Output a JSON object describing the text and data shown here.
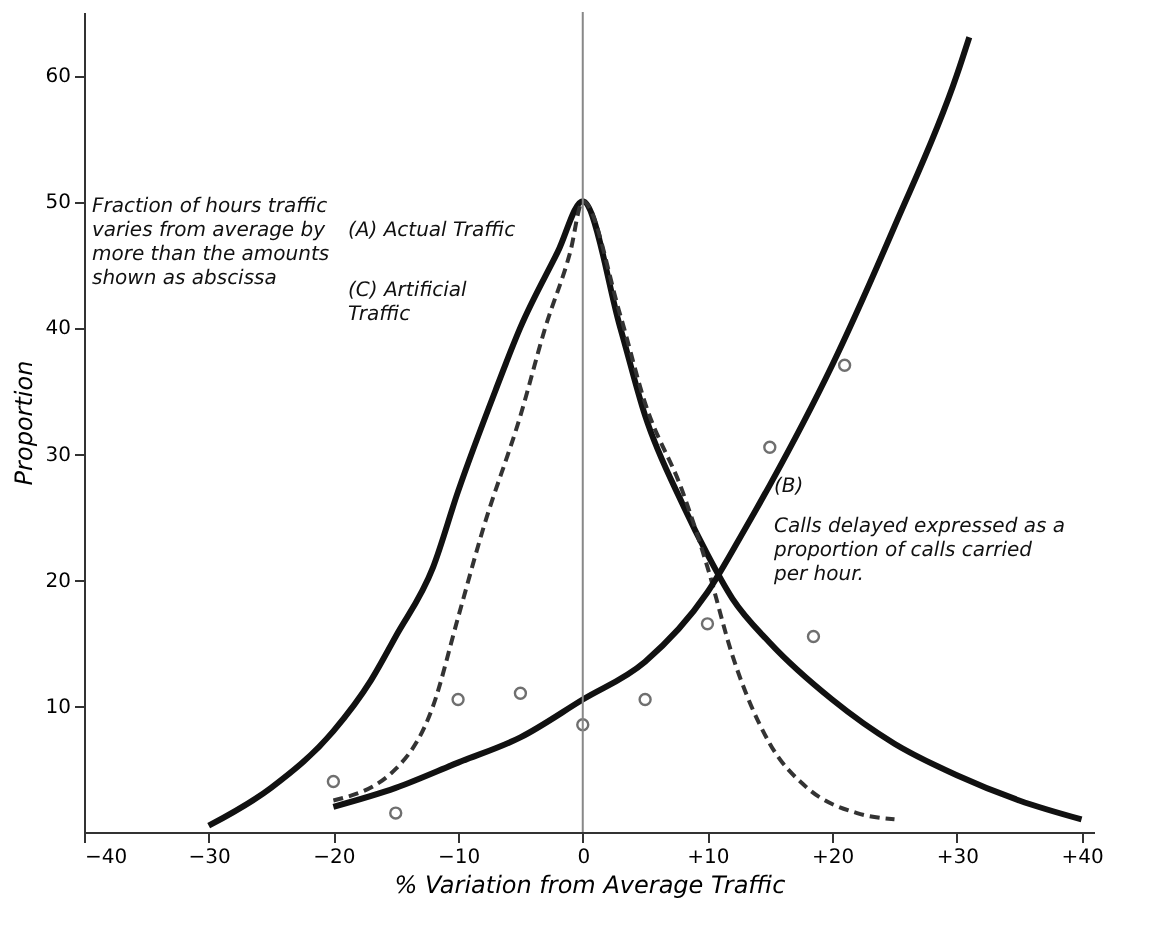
{
  "chart_data": {
    "type": "line",
    "xlabel": "% Variation from Average Traffic",
    "ylabel": "Proportion",
    "xlim": [
      -40,
      41
    ],
    "ylim": [
      0,
      65
    ],
    "xticks": [
      -40,
      -30,
      -20,
      -10,
      0,
      {
        "value": 10,
        "label": "+10"
      },
      {
        "value": 20,
        "label": "+20"
      },
      {
        "value": 30,
        "label": "+30"
      },
      {
        "value": 40,
        "label": "+40"
      }
    ],
    "yticks": [
      10,
      20,
      30,
      40,
      50,
      60
    ],
    "grid": false,
    "ref_lines": [
      {
        "axis": "x",
        "value": 0,
        "color": "#888888"
      }
    ],
    "series": [
      {
        "color": "#111111",
        "line_style": "solid",
        "x": [
          -30,
          -25,
          -20,
          -17,
          -15,
          -12,
          -10,
          -7,
          -5,
          -2,
          0,
          3,
          5,
          8,
          10,
          12,
          15,
          20,
          25,
          30,
          35,
          40
        ],
        "values": [
          0.5,
          3.5,
          8,
          12,
          15.5,
          21,
          27,
          35,
          40,
          46,
          50,
          40,
          33,
          26,
          22,
          18.5,
          15,
          10.5,
          7,
          4.5,
          2.5,
          1
        ]
      },
      {
        "color": "#333333",
        "line_style": "dashed",
        "x": [
          -20,
          -15,
          -12,
          -10,
          -8,
          -5,
          -3,
          -1,
          0,
          3,
          5,
          8,
          10,
          12,
          15,
          18,
          22,
          25
        ],
        "values": [
          2.5,
          5,
          10,
          17,
          24,
          33,
          40,
          46,
          50,
          41,
          34,
          27,
          21,
          14,
          7,
          3.5,
          1.5,
          1
        ]
      },
      {
        "color": "#111111",
        "line_style": "solid",
        "x": [
          -20,
          -15,
          -10,
          -5,
          0,
          5,
          10,
          13,
          15,
          20,
          25,
          30,
          31
        ],
        "values": [
          2,
          3.5,
          5.5,
          7.5,
          10.5,
          13.5,
          19,
          24,
          27.5,
          37,
          48,
          60,
          63
        ]
      },
      {
        "type": "scatter",
        "marker": "circle",
        "color": "#333333",
        "x": [
          -20,
          -15,
          -10,
          -5,
          5,
          15,
          21,
          0,
          10,
          18.5
        ],
        "values": [
          4,
          1.5,
          10.5,
          11,
          10.5,
          30.5,
          37,
          8.5,
          16.5,
          15.5
        ]
      }
    ],
    "annotations": [
      "Fraction of hours traffic\nvaries from average by\nmore than the amounts\nshown as abscissa",
      "(A) Actual Traffic",
      "(C) Artificial\nTraffic",
      "(B)",
      "Calls delayed expressed as a\nproportion of calls carried\nper hour."
    ]
  }
}
